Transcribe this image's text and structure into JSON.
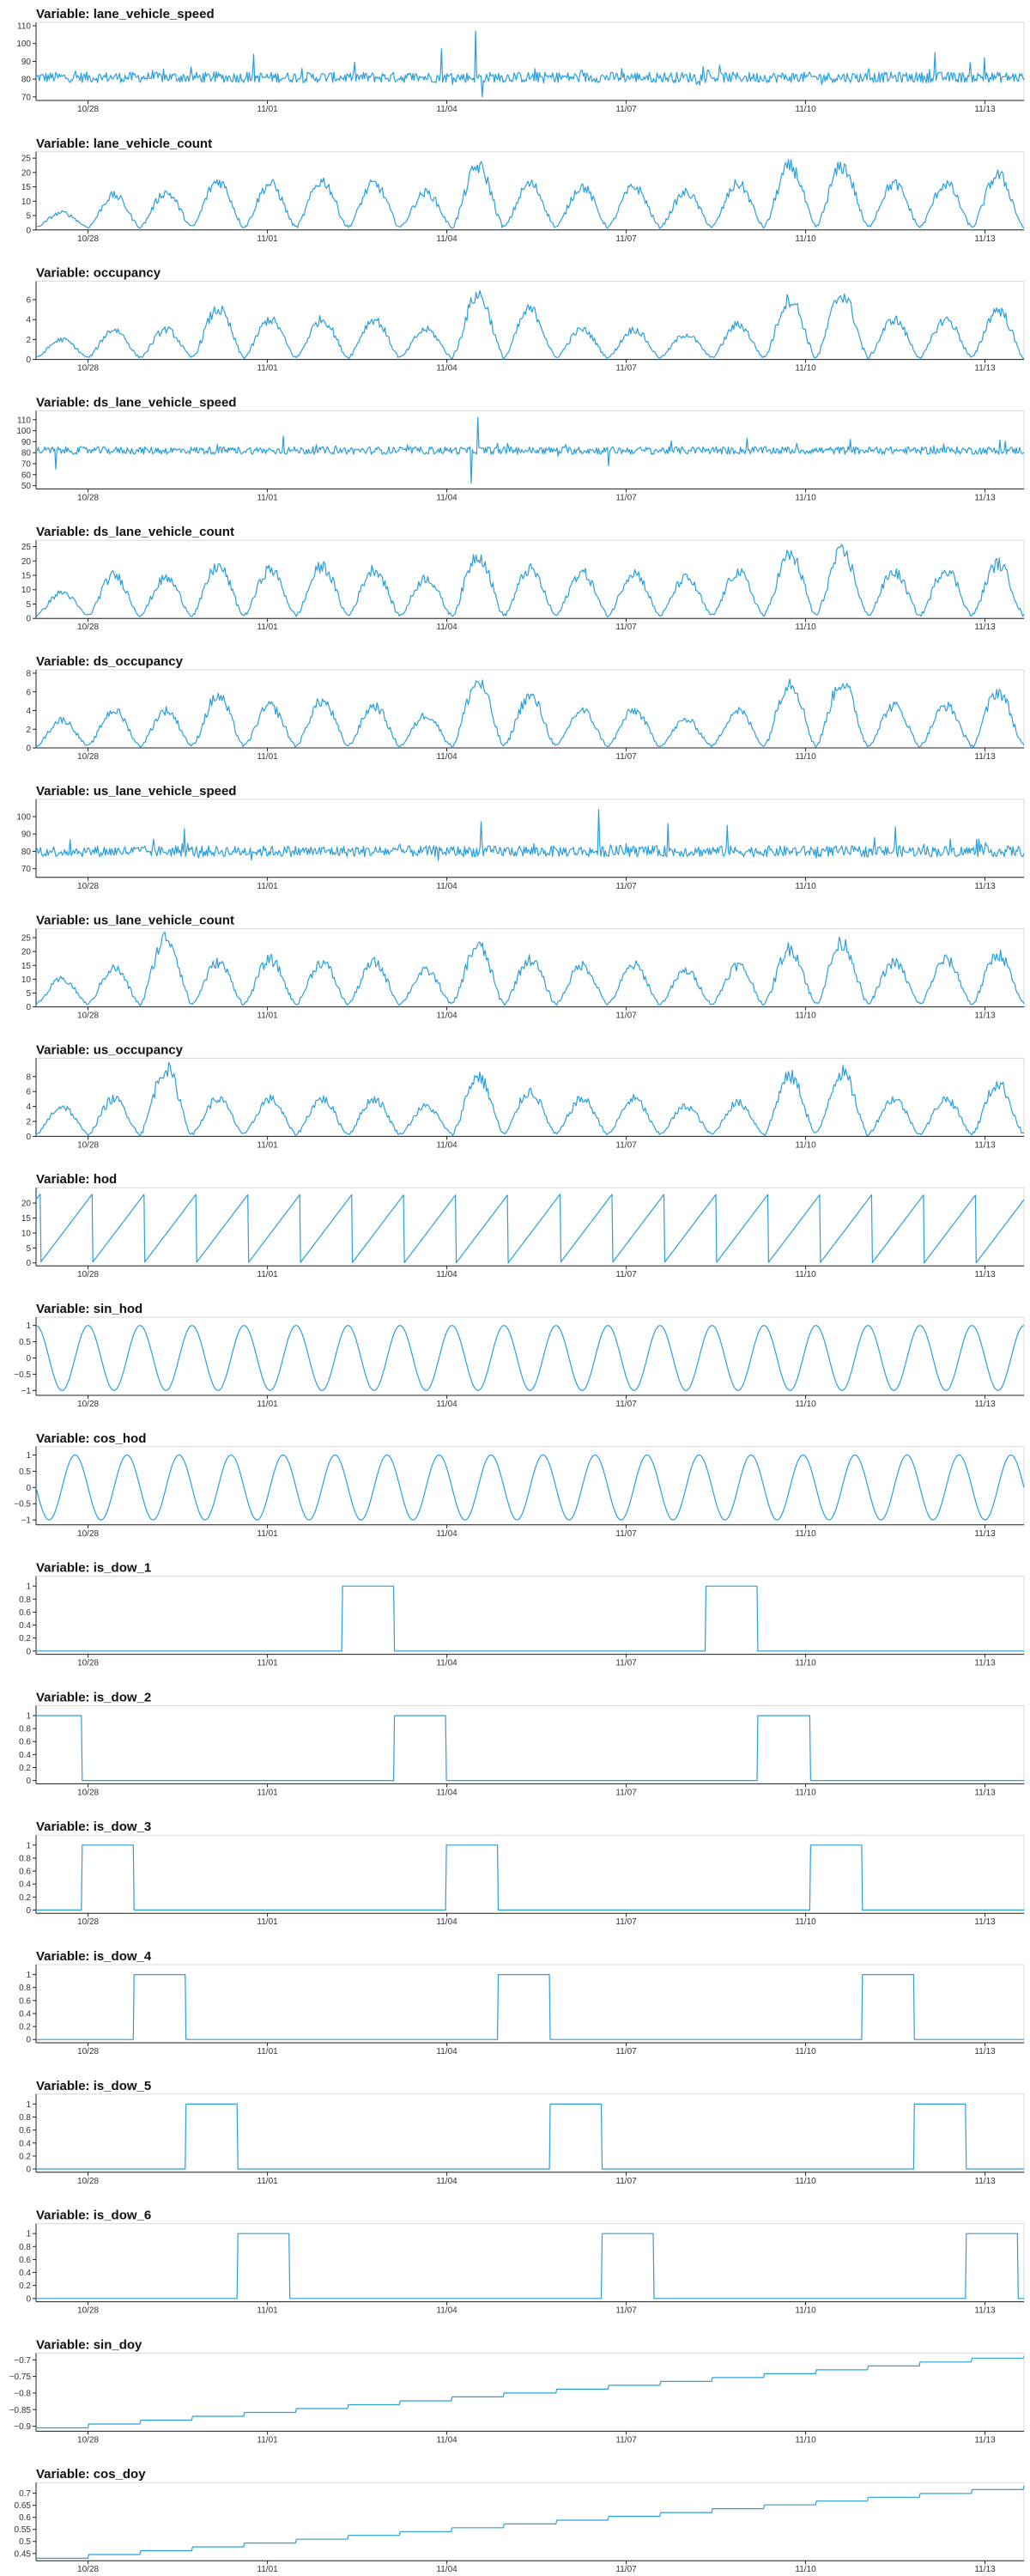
{
  "colors": {
    "line": "#2b9fdc",
    "axis": "#222222",
    "frame": "#d9d9d9"
  },
  "chart_data": [
    {
      "type": "line",
      "title": "Variable: lane_vehicle_speed",
      "ylim": [
        68,
        110
      ],
      "yticks": [
        70,
        80,
        90,
        100,
        110
      ],
      "xticks": [
        "10/28",
        "11/01",
        "11/04",
        "11/07",
        "11/10",
        "11/13"
      ],
      "profile": {
        "kind": "noise",
        "base": 81,
        "amp": 3,
        "spikes": [
          [
            0.22,
            94
          ],
          [
            0.41,
            97
          ],
          [
            0.445,
            107
          ],
          [
            0.452,
            70
          ],
          [
            0.91,
            95
          ],
          [
            0.96,
            92
          ]
        ]
      }
    },
    {
      "type": "line",
      "title": "Variable: lane_vehicle_count",
      "ylim": [
        0,
        26
      ],
      "yticks": [
        0,
        5,
        10,
        15,
        20,
        25
      ],
      "xticks": [
        "10/28",
        "11/01",
        "11/04",
        "11/07",
        "11/10",
        "11/13"
      ],
      "profile": {
        "kind": "daily",
        "low": 1,
        "high": 16,
        "peaks": [
          6,
          12,
          13,
          17,
          16,
          17,
          16,
          13,
          22,
          16,
          15,
          15,
          13,
          16,
          22,
          22,
          16,
          16,
          19
        ]
      }
    },
    {
      "type": "line",
      "title": "Variable: occupancy",
      "ylim": [
        0,
        7.5
      ],
      "yticks": [
        0,
        2,
        4,
        6
      ],
      "xticks": [
        "10/28",
        "11/01",
        "11/04",
        "11/07",
        "11/10",
        "11/13"
      ],
      "profile": {
        "kind": "daily",
        "low": 0.2,
        "high": 3.5,
        "peaks": [
          2,
          3,
          3,
          5,
          4,
          4,
          4,
          3,
          6.5,
          5,
          3,
          3,
          2.5,
          3.5,
          6,
          6.5,
          4,
          4,
          5
        ]
      }
    },
    {
      "type": "line",
      "title": "Variable: ds_lane_vehicle_speed",
      "ylim": [
        47,
        115
      ],
      "yticks": [
        50,
        60,
        70,
        80,
        90,
        100,
        110
      ],
      "xticks": [
        "10/28",
        "11/01",
        "11/04",
        "11/07",
        "11/10",
        "11/13"
      ],
      "profile": {
        "kind": "noise",
        "base": 82,
        "amp": 3.5,
        "spikes": [
          [
            0.02,
            65
          ],
          [
            0.25,
            95
          ],
          [
            0.447,
            112
          ],
          [
            0.44,
            52
          ],
          [
            0.58,
            68
          ],
          [
            0.72,
            93
          ]
        ]
      }
    },
    {
      "type": "line",
      "title": "Variable: ds_lane_vehicle_count",
      "ylim": [
        0,
        26
      ],
      "yticks": [
        0,
        5,
        10,
        15,
        20,
        25
      ],
      "xticks": [
        "10/28",
        "11/01",
        "11/04",
        "11/07",
        "11/10",
        "11/13"
      ],
      "profile": {
        "kind": "daily",
        "low": 1,
        "high": 16,
        "peaks": [
          9,
          15,
          14,
          18,
          17,
          18,
          17,
          14,
          22,
          17,
          16,
          16,
          14,
          16,
          22,
          23,
          16,
          17,
          19
        ]
      }
    },
    {
      "type": "line",
      "title": "Variable: ds_occupancy",
      "ylim": [
        0,
        8
      ],
      "yticks": [
        0,
        2,
        4,
        6,
        8
      ],
      "xticks": [
        "10/28",
        "11/01",
        "11/04",
        "11/07",
        "11/10",
        "11/13"
      ],
      "profile": {
        "kind": "daily",
        "low": 0.2,
        "high": 3.8,
        "peaks": [
          3,
          4,
          4,
          5.5,
          4.5,
          5,
          4.5,
          3.5,
          7,
          5.5,
          4,
          4,
          3,
          4,
          7,
          7,
          4.5,
          4.5,
          6
        ]
      }
    },
    {
      "type": "line",
      "title": "Variable: us_lane_vehicle_speed",
      "ylim": [
        65,
        108
      ],
      "yticks": [
        70,
        80,
        90,
        100
      ],
      "xticks": [
        "10/28",
        "11/01",
        "11/04",
        "11/07",
        "11/10",
        "11/13"
      ],
      "profile": {
        "kind": "noise",
        "base": 80,
        "amp": 3.2,
        "spikes": [
          [
            0.15,
            93
          ],
          [
            0.45,
            97
          ],
          [
            0.57,
            104
          ],
          [
            0.64,
            96
          ],
          [
            0.7,
            95
          ],
          [
            0.87,
            94
          ]
        ]
      }
    },
    {
      "type": "line",
      "title": "Variable: us_lane_vehicle_count",
      "ylim": [
        0,
        27
      ],
      "yticks": [
        0,
        5,
        10,
        15,
        20,
        25
      ],
      "xticks": [
        "10/28",
        "11/01",
        "11/04",
        "11/07",
        "11/10",
        "11/13"
      ],
      "profile": {
        "kind": "daily",
        "low": 1,
        "high": 15,
        "peaks": [
          10,
          14,
          25,
          16,
          17,
          16,
          16,
          13,
          22,
          17,
          15,
          15,
          13,
          15,
          21,
          23,
          16,
          17,
          19
        ]
      }
    },
    {
      "type": "line",
      "title": "Variable: us_occupancy",
      "ylim": [
        0,
        10
      ],
      "yticks": [
        0,
        2,
        4,
        6,
        8
      ],
      "xticks": [
        "10/28",
        "11/01",
        "11/04",
        "11/07",
        "11/10",
        "11/13"
      ],
      "profile": {
        "kind": "daily",
        "low": 0.3,
        "high": 4,
        "peaks": [
          4,
          5,
          9,
          5,
          5,
          5,
          5,
          4,
          8,
          6,
          5,
          5,
          4,
          4.5,
          8,
          8.5,
          5,
          5,
          7
        ]
      }
    },
    {
      "type": "line",
      "title": "Variable: hod",
      "ylim": [
        -1,
        24
      ],
      "yticks": [
        0,
        5,
        10,
        15,
        20
      ],
      "xticks": [
        "10/28",
        "11/01",
        "11/04",
        "11/07",
        "11/10",
        "11/13"
      ],
      "profile": {
        "kind": "sawtooth",
        "min": 0,
        "max": 23
      }
    },
    {
      "type": "line",
      "title": "Variable: sin_hod",
      "ylim": [
        -1.15,
        1.15
      ],
      "yticks": [
        -1,
        -0.5,
        0,
        0.5,
        1
      ],
      "xticks": [
        "10/28",
        "11/01",
        "11/04",
        "11/07",
        "11/10",
        "11/13"
      ],
      "profile": {
        "kind": "sine",
        "phase": 0
      }
    },
    {
      "type": "line",
      "title": "Variable: cos_hod",
      "ylim": [
        -1.15,
        1.15
      ],
      "yticks": [
        -1,
        -0.5,
        0,
        0.5,
        1
      ],
      "xticks": [
        "10/28",
        "11/01",
        "11/04",
        "11/07",
        "11/10",
        "11/13"
      ],
      "profile": {
        "kind": "sine",
        "phase": 1.5708
      }
    },
    {
      "type": "line",
      "title": "Variable: is_dow_1",
      "ylim": [
        -0.05,
        1.1
      ],
      "yticks": [
        0,
        0.2,
        0.4,
        0.6,
        0.8,
        1
      ],
      "xticks": [
        "10/28",
        "11/01",
        "11/04",
        "11/07",
        "11/10",
        "11/13"
      ],
      "profile": {
        "kind": "step",
        "on_days": [
          -1,
          6,
          13
        ]
      }
    },
    {
      "type": "line",
      "title": "Variable: is_dow_2",
      "ylim": [
        -0.05,
        1.1
      ],
      "yticks": [
        0,
        0.2,
        0.4,
        0.6,
        0.8,
        1
      ],
      "xticks": [
        "10/28",
        "11/01",
        "11/04",
        "11/07",
        "11/10",
        "11/13"
      ],
      "profile": {
        "kind": "step",
        "on_days": [
          0,
          7,
          14
        ]
      }
    },
    {
      "type": "line",
      "title": "Variable: is_dow_3",
      "ylim": [
        -0.05,
        1.1
      ],
      "yticks": [
        0,
        0.2,
        0.4,
        0.6,
        0.8,
        1
      ],
      "xticks": [
        "10/28",
        "11/01",
        "11/04",
        "11/07",
        "11/10",
        "11/13"
      ],
      "profile": {
        "kind": "step",
        "on_days": [
          1,
          8,
          15
        ]
      }
    },
    {
      "type": "line",
      "title": "Variable: is_dow_4",
      "ylim": [
        -0.05,
        1.1
      ],
      "yticks": [
        0,
        0.2,
        0.4,
        0.6,
        0.8,
        1
      ],
      "xticks": [
        "10/28",
        "11/01",
        "11/04",
        "11/07",
        "11/10",
        "11/13"
      ],
      "profile": {
        "kind": "step",
        "on_days": [
          2,
          9,
          16
        ]
      }
    },
    {
      "type": "line",
      "title": "Variable: is_dow_5",
      "ylim": [
        -0.05,
        1.1
      ],
      "yticks": [
        0,
        0.2,
        0.4,
        0.6,
        0.8,
        1
      ],
      "xticks": [
        "10/28",
        "11/01",
        "11/04",
        "11/07",
        "11/10",
        "11/13"
      ],
      "profile": {
        "kind": "step",
        "on_days": [
          3,
          10,
          17
        ]
      }
    },
    {
      "type": "line",
      "title": "Variable: is_dow_6",
      "ylim": [
        -0.05,
        1.1
      ],
      "yticks": [
        0,
        0.2,
        0.4,
        0.6,
        0.8,
        1
      ],
      "xticks": [
        "10/28",
        "11/01",
        "11/04",
        "11/07",
        "11/10",
        "11/13"
      ],
      "profile": {
        "kind": "step",
        "on_days": [
          4,
          11,
          18
        ]
      }
    },
    {
      "type": "line",
      "title": "Variable: sin_doy",
      "ylim": [
        -0.915,
        -0.69
      ],
      "yticks": [
        -0.9,
        -0.85,
        -0.8,
        -0.75,
        -0.7
      ],
      "xticks": [
        "10/28",
        "11/01",
        "11/04",
        "11/07",
        "11/10",
        "11/13"
      ],
      "profile": {
        "kind": "stairs",
        "start": -0.905,
        "end": -0.695
      }
    },
    {
      "type": "line",
      "title": "Variable: cos_doy",
      "ylim": [
        0.42,
        0.73
      ],
      "yticks": [
        0.45,
        0.5,
        0.55,
        0.6,
        0.65,
        0.7
      ],
      "xticks": [
        "10/28",
        "11/01",
        "11/04",
        "11/07",
        "11/10",
        "11/13"
      ],
      "profile": {
        "kind": "stairs",
        "start": 0.43,
        "end": 0.715
      }
    }
  ]
}
